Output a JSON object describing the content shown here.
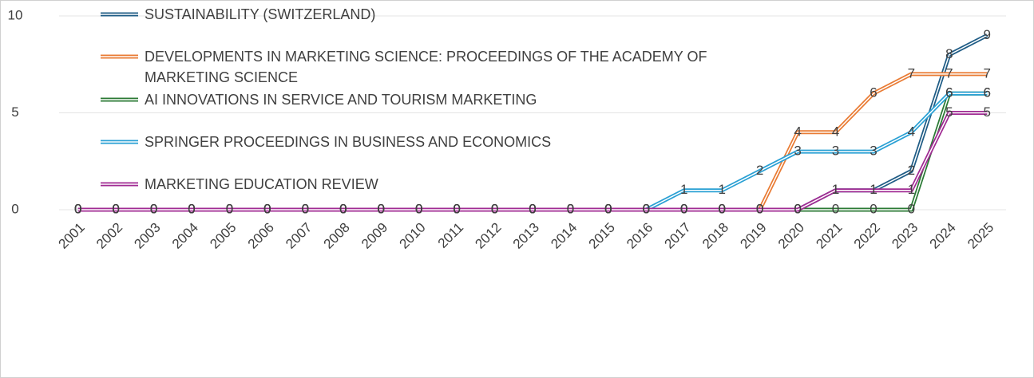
{
  "chart_data": {
    "type": "line",
    "categories": [
      "2001",
      "2002",
      "2003",
      "2004",
      "2005",
      "2006",
      "2007",
      "2008",
      "2009",
      "2010",
      "2011",
      "2012",
      "2013",
      "2014",
      "2015",
      "2016",
      "2017",
      "2018",
      "2019",
      "2020",
      "2021",
      "2022",
      "2023",
      "2024",
      "2025"
    ],
    "series": [
      {
        "name": "SUSTAINABILITY (SWITZERLAND)",
        "color": "#1f5c85",
        "values": [
          0,
          0,
          0,
          0,
          0,
          0,
          0,
          0,
          0,
          0,
          0,
          0,
          0,
          0,
          0,
          0,
          0,
          0,
          0,
          0,
          1,
          1,
          2,
          8,
          9
        ]
      },
      {
        "name": "DEVELOPMENTS IN MARKETING SCIENCE: PROCEEDINGS OF THE ACADEMY OF MARKETING SCIENCE",
        "color": "#e97c35",
        "values": [
          0,
          0,
          0,
          0,
          0,
          0,
          0,
          0,
          0,
          0,
          0,
          0,
          0,
          0,
          0,
          0,
          0,
          0,
          0,
          4,
          4,
          6,
          7,
          7,
          7
        ]
      },
      {
        "name": "AI INNOVATIONS IN SERVICE AND TOURISM MARKETING",
        "color": "#2b7a35",
        "values": [
          0,
          0,
          0,
          0,
          0,
          0,
          0,
          0,
          0,
          0,
          0,
          0,
          0,
          0,
          0,
          0,
          0,
          0,
          0,
          0,
          0,
          0,
          0,
          6,
          6
        ]
      },
      {
        "name": "SPRINGER PROCEEDINGS IN BUSINESS AND ECONOMICS",
        "color": "#2aa0d4",
        "values": [
          0,
          0,
          0,
          0,
          0,
          0,
          0,
          0,
          0,
          0,
          0,
          0,
          0,
          0,
          0,
          0,
          1,
          1,
          2,
          3,
          3,
          3,
          4,
          6,
          6
        ]
      },
      {
        "name": "MARKETING EDUCATION REVIEW",
        "color": "#a02b93",
        "values": [
          0,
          0,
          0,
          0,
          0,
          0,
          0,
          0,
          0,
          0,
          0,
          0,
          0,
          0,
          0,
          0,
          0,
          0,
          0,
          0,
          1,
          1,
          1,
          5,
          5
        ]
      }
    ],
    "ylim": [
      0,
      10
    ],
    "yticks": [
      0,
      5,
      10
    ],
    "grid": true,
    "legend": "top-left"
  }
}
